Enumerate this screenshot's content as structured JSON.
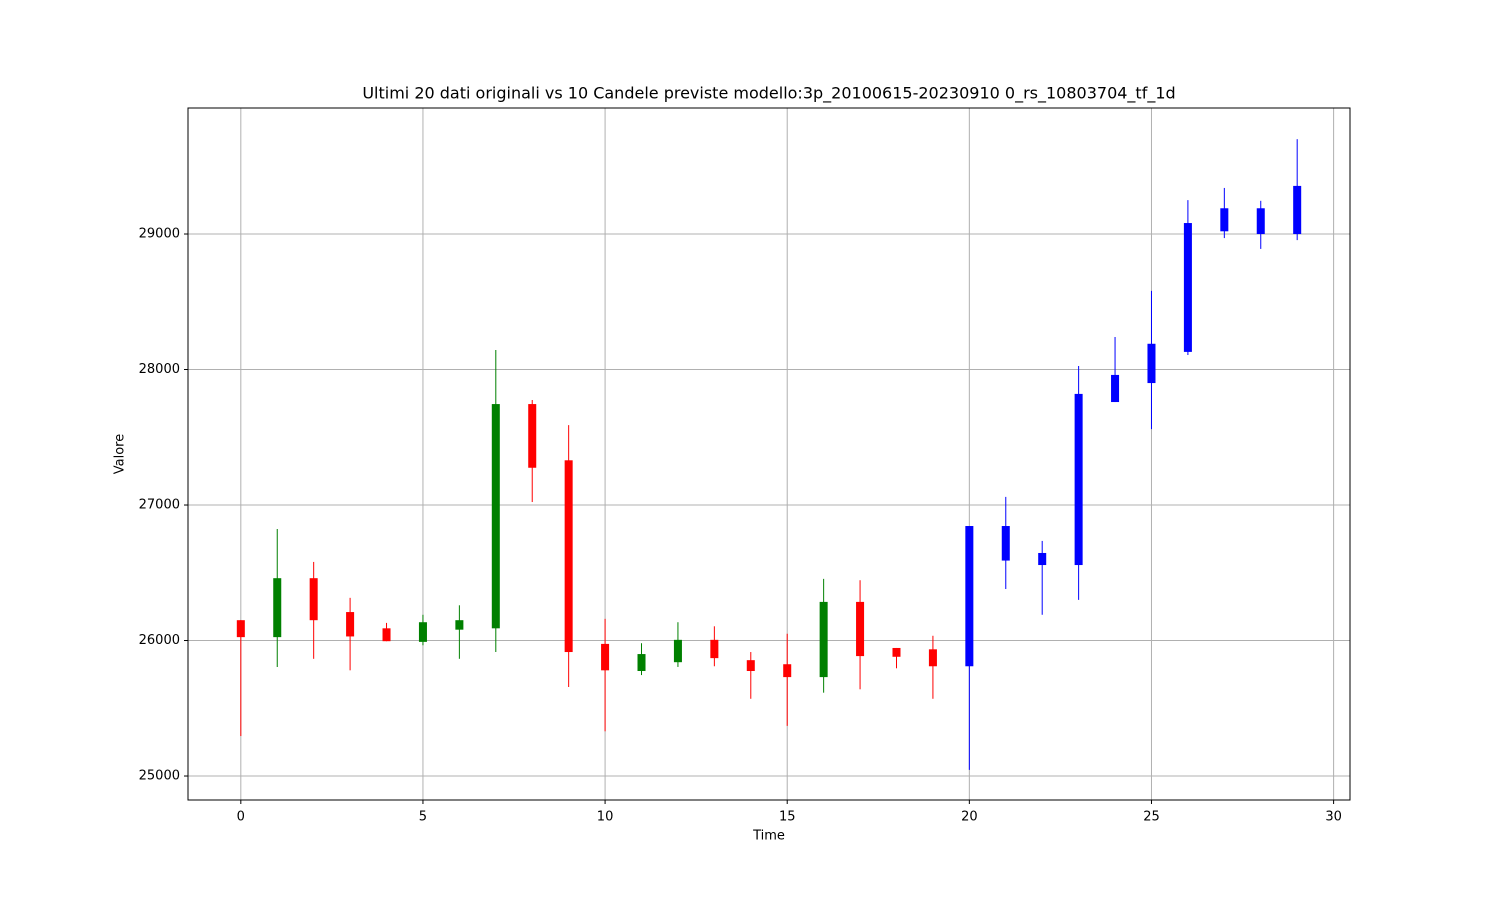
{
  "chart_data": {
    "type": "candlestick",
    "title": "Ultimi 20 dati originali vs 10 Candele previste modello:3p_20100615-20230910 0_rs_10803704_tf_1d",
    "x_label": "Time",
    "y_label": "Valore",
    "xlim": [
      -1.45,
      30.45
    ],
    "ylim": [
      24823,
      29930
    ],
    "xticks": [
      0,
      5,
      10,
      15,
      20,
      25,
      30
    ],
    "yticks": [
      25000,
      26000,
      27000,
      28000,
      29000
    ],
    "grid": true,
    "series": [
      {
        "up_color": "green",
        "down_color": "red",
        "x": [
          0,
          1,
          2,
          3,
          4,
          5,
          6,
          7,
          8,
          9,
          10,
          11,
          12,
          13,
          14,
          15,
          16,
          17,
          18,
          19
        ],
        "open": [
          26150,
          26025,
          26460,
          26210,
          26090,
          25990,
          26080,
          26090,
          27745,
          27330,
          25975,
          25775,
          25840,
          26005,
          25855,
          25825,
          25730,
          26285,
          25945,
          25935
        ],
        "high": [
          26150,
          26823,
          26580,
          26315,
          26130,
          26190,
          26260,
          28144,
          27775,
          27590,
          26160,
          25980,
          26135,
          26105,
          25915,
          26050,
          26455,
          26445,
          25945,
          26035
        ],
        "low": [
          25295,
          25805,
          25865,
          25780,
          25995,
          25965,
          25865,
          25915,
          27022,
          25657,
          25330,
          25745,
          25805,
          25810,
          25570,
          25370,
          25615,
          25640,
          25795,
          25570
        ],
        "close": [
          26025,
          26460,
          26150,
          26030,
          25995,
          26135,
          26150,
          27745,
          27275,
          25915,
          25780,
          25900,
          26005,
          25870,
          25775,
          25730,
          26285,
          25885,
          25880,
          25810
        ]
      },
      {
        "color": "blue",
        "x": [
          20,
          21,
          22,
          23,
          24,
          25,
          26,
          27,
          28,
          29
        ],
        "open": [
          25810,
          26590,
          26557,
          26557,
          27760,
          27900,
          28130,
          29020,
          29000,
          29000
        ],
        "high": [
          26845,
          27060,
          26735,
          28026,
          28240,
          28580,
          29250,
          29340,
          29245,
          29700
        ],
        "low": [
          25045,
          26380,
          26190,
          26300,
          27760,
          27560,
          28107,
          28970,
          28890,
          28955
        ],
        "close": [
          26845,
          26845,
          26646,
          27820,
          27960,
          28190,
          29081,
          29190,
          29190,
          29355
        ]
      }
    ]
  }
}
